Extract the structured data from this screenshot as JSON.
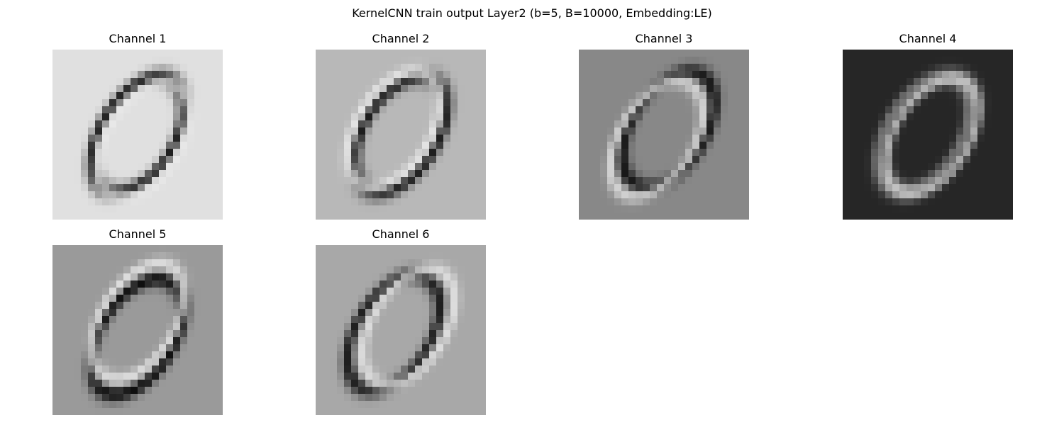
{
  "figure": {
    "title": "KernelCNN train output Layer2 (b=5, B=10000, Embedding:LE)"
  },
  "chart_data": {
    "type": "heatmap",
    "title": "KernelCNN train output Layer2 (b=5, B=10000, Embedding:LE)",
    "colormap": "gray",
    "grid": false,
    "axes_visible": false,
    "image_size": [
      24,
      24
    ],
    "panels": [
      {
        "title": "Channel 1",
        "background": "#e0e0e0",
        "description_stroke": "dark ring with light inner highlight"
      },
      {
        "title": "Channel 2",
        "background": "#b8b8b8",
        "description_stroke": "dark ring with bright upper-left edge"
      },
      {
        "title": "Channel 3",
        "background": "#888888",
        "description_stroke": "mixed dark/bright edge response"
      },
      {
        "title": "Channel 4",
        "background": "#262626",
        "description_stroke": "bright edge outlines on dark"
      },
      {
        "title": "Channel 5",
        "background": "#9a9a9a",
        "description_stroke": "double-edged dark/bright ring"
      },
      {
        "title": "Channel 6",
        "background": "#a8a8a8",
        "description_stroke": "shifted double ring edges"
      }
    ]
  }
}
